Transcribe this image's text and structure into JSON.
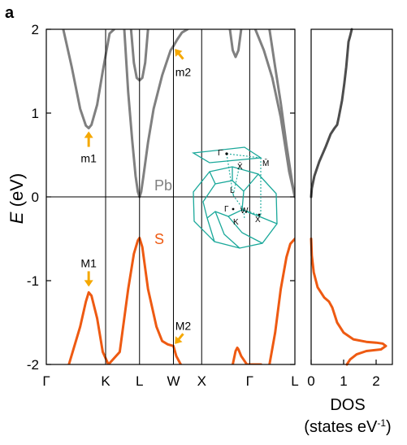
{
  "panel_label": "a",
  "colors": {
    "valence": "#ee5a12",
    "conduction": "#808080",
    "dos": "#4d4d4d",
    "annotation": "#f5a800",
    "brillouin": "#1aa89a",
    "axis": "#000000"
  },
  "labels": {
    "pb": "Pb",
    "s": "S",
    "m1": "m1",
    "m2": "m2",
    "M1": "M1",
    "M2": "M2"
  },
  "inset": {
    "labels": [
      "Γ̄",
      "M̄",
      "X̄",
      "L",
      "Γ",
      "W",
      "K",
      "X"
    ]
  },
  "chart_data": [
    {
      "type": "line",
      "title": "",
      "xlabel": "",
      "ylabel": "E (eV)",
      "ylabel_italic": "E",
      "ylabel_unit": " (eV)",
      "ylim": [
        -2,
        2
      ],
      "yticks": [
        "-2",
        "-1",
        "0",
        "1",
        "2"
      ],
      "xticks": [
        "Γ",
        "K",
        "L",
        "W",
        "X",
        "Γ",
        "L"
      ],
      "kpath_positions": [
        0,
        1.05,
        1.65,
        2.25,
        2.75,
        3.6,
        4.4
      ],
      "grid": false,
      "series": [
        {
          "name": "S",
          "band": "valence",
          "x": [
            0.4,
            0.6,
            0.7,
            0.75,
            0.8,
            0.9,
            1.0,
            1.1,
            1.3,
            1.45,
            1.55,
            1.62,
            1.65,
            1.7,
            1.8,
            1.95,
            2.05,
            2.15,
            2.25,
            2.3,
            2.38
          ],
          "y": [
            -2.0,
            -1.55,
            -1.25,
            -1.14,
            -1.18,
            -1.45,
            -1.85,
            -2.0,
            -1.85,
            -1.1,
            -0.68,
            -0.52,
            -0.49,
            -0.6,
            -1.1,
            -1.55,
            -1.72,
            -1.76,
            -1.78,
            -1.9,
            -2.0
          ]
        },
        {
          "name": "",
          "band": "valence",
          "x": [
            3.3,
            3.35,
            3.38,
            3.4,
            3.45,
            3.55,
            3.7,
            3.8
          ],
          "y": [
            -2.0,
            -1.84,
            -1.8,
            -1.82,
            -1.9,
            -2.0,
            -2.0,
            -2.0
          ]
        },
        {
          "name": "",
          "band": "valence",
          "x": [
            3.95,
            4.05,
            4.15,
            4.25,
            4.32,
            4.4
          ],
          "y": [
            -2.0,
            -1.62,
            -1.1,
            -0.72,
            -0.56,
            -0.5
          ]
        },
        {
          "name": "Pb",
          "band": "conduction",
          "x": [
            0.3,
            0.45,
            0.6,
            0.7,
            0.75,
            0.8,
            0.9,
            1.0,
            1.12,
            1.2
          ],
          "y": [
            2.0,
            1.55,
            1.05,
            0.85,
            0.82,
            0.86,
            1.1,
            1.5,
            1.95,
            2.0
          ]
        },
        {
          "name": "",
          "band": "conduction",
          "x": [
            1.38,
            1.45,
            1.52,
            1.58,
            1.62,
            1.65,
            1.68,
            1.72,
            1.8,
            1.9,
            2.05,
            2.2,
            2.25
          ],
          "y": [
            2.0,
            1.25,
            0.68,
            0.25,
            0.06,
            0.0,
            0.06,
            0.25,
            0.65,
            1.05,
            1.45,
            1.75,
            1.8
          ]
        },
        {
          "name": "",
          "band": "conduction",
          "x": [
            1.5,
            1.55,
            1.6,
            1.65,
            1.7,
            1.75,
            1.8
          ],
          "y": [
            2.0,
            1.6,
            1.42,
            1.39,
            1.42,
            1.6,
            2.0
          ]
        },
        {
          "name": "",
          "band": "conduction",
          "x": [
            2.25,
            2.32,
            2.4,
            2.5
          ],
          "y": [
            1.8,
            1.88,
            1.96,
            2.0
          ]
        },
        {
          "name": "",
          "band": "conduction",
          "x": [
            3.25,
            3.3,
            3.35,
            3.4,
            3.45
          ],
          "y": [
            2.0,
            1.75,
            1.67,
            1.75,
            2.0
          ]
        },
        {
          "name": "",
          "band": "conduction",
          "x": [
            3.7,
            3.85,
            4.0,
            4.15,
            4.3,
            4.4
          ],
          "y": [
            2.0,
            1.75,
            1.42,
            0.95,
            0.3,
            0.0
          ]
        },
        {
          "name": "",
          "band": "conduction",
          "x": [
            3.95,
            4.05,
            4.15,
            4.25,
            4.35,
            4.4
          ],
          "y": [
            2.0,
            1.55,
            1.12,
            0.62,
            0.18,
            0.0
          ]
        }
      ],
      "annotations": [
        {
          "text": "m1",
          "x": 0.75,
          "y": 0.82
        },
        {
          "text": "m2",
          "x": 2.25,
          "y": 1.8
        },
        {
          "text": "M1",
          "x": 0.75,
          "y": -1.14
        },
        {
          "text": "M2",
          "x": 2.25,
          "y": -1.78
        }
      ]
    },
    {
      "type": "line",
      "title": "",
      "xlabel": "DOS",
      "xlabel_unit": "(states eV",
      "xlabel_unit_sup": "-1",
      "xlabel_unit_end": ")",
      "ylabel": "",
      "xlim": [
        0,
        2.5
      ],
      "ylim": [
        -2,
        2
      ],
      "xticks": [
        "0",
        "1",
        "2"
      ],
      "grid": false,
      "series": [
        {
          "name": "",
          "band": "valence",
          "x": [
            0.0,
            0.02,
            0.08,
            0.2,
            0.4,
            0.55,
            0.65,
            0.8,
            1.0,
            1.3,
            1.7,
            2.0,
            2.2,
            2.3,
            2.15,
            1.7,
            1.4,
            1.2,
            1.1
          ],
          "y": [
            -0.5,
            -0.7,
            -0.9,
            -1.08,
            -1.2,
            -1.25,
            -1.32,
            -1.5,
            -1.62,
            -1.7,
            -1.73,
            -1.74,
            -1.75,
            -1.78,
            -1.82,
            -1.84,
            -1.88,
            -1.94,
            -2.0
          ]
        },
        {
          "name": "",
          "band": "conduction",
          "x": [
            0.0,
            0.02,
            0.1,
            0.25,
            0.45,
            0.6,
            0.72,
            0.8,
            0.85,
            0.95,
            1.02,
            1.08,
            1.12,
            1.15,
            1.2,
            1.25
          ],
          "y": [
            0.0,
            0.1,
            0.25,
            0.42,
            0.6,
            0.75,
            0.82,
            0.86,
            0.95,
            1.15,
            1.35,
            1.55,
            1.72,
            1.85,
            1.92,
            2.0
          ]
        }
      ]
    }
  ]
}
